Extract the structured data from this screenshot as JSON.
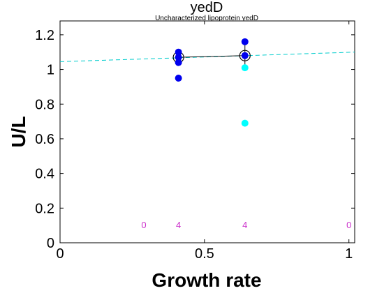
{
  "chart_data": {
    "type": "scatter",
    "title": "yedD",
    "subtitle": "Uncharacterized lipoprotein yedD",
    "xlabel": "Growth rate",
    "ylabel": "U/L",
    "xlim": [
      0,
      1.02
    ],
    "ylim": [
      0,
      1.28
    ],
    "xticks": [
      0,
      0.5,
      1
    ],
    "xtick_labels": [
      "0",
      "0.5",
      "1"
    ],
    "yticks": [
      0,
      0.2,
      0.4,
      0.6,
      0.8,
      1,
      1.2
    ],
    "ytick_labels": [
      "0",
      "0.2",
      "0.4",
      "0.6",
      "0.8",
      "1",
      "1.2"
    ],
    "grid": false,
    "colors": {
      "blue_points": "#0000ee",
      "cyan_points": "#00ffff",
      "fit_line": "#00cccc",
      "counts": "#cc33cc",
      "mean_line": "#000000"
    },
    "series": [
      {
        "marker": "filled-circle",
        "color": "#0000ee",
        "points": [
          {
            "x": 0.41,
            "y": 1.1
          },
          {
            "x": 0.41,
            "y": 1.07
          },
          {
            "x": 0.41,
            "y": 1.04
          },
          {
            "x": 0.41,
            "y": 0.95
          },
          {
            "x": 0.64,
            "y": 1.16
          },
          {
            "x": 0.64,
            "y": 1.08
          }
        ]
      },
      {
        "marker": "filled-circle",
        "color": "#00ffff",
        "points": [
          {
            "x": 0.64,
            "y": 1.01
          },
          {
            "x": 0.64,
            "y": 0.69
          }
        ]
      },
      {
        "marker": "open-circle-mean",
        "color": "#000000",
        "points": [
          {
            "x": 0.41,
            "y": 1.07,
            "err": 0.03
          },
          {
            "x": 0.64,
            "y": 1.08,
            "err": 0.07
          }
        ]
      }
    ],
    "fit_line": {
      "style": "dashed",
      "x": [
        0,
        1.02
      ],
      "y": [
        1.045,
        1.1
      ]
    },
    "counts": [
      {
        "x": 0.29,
        "y": 0.1,
        "label": "0"
      },
      {
        "x": 0.41,
        "y": 0.1,
        "label": "4"
      },
      {
        "x": 0.64,
        "y": 0.1,
        "label": "4"
      },
      {
        "x": 1.0,
        "y": 0.1,
        "label": "0"
      }
    ]
  }
}
